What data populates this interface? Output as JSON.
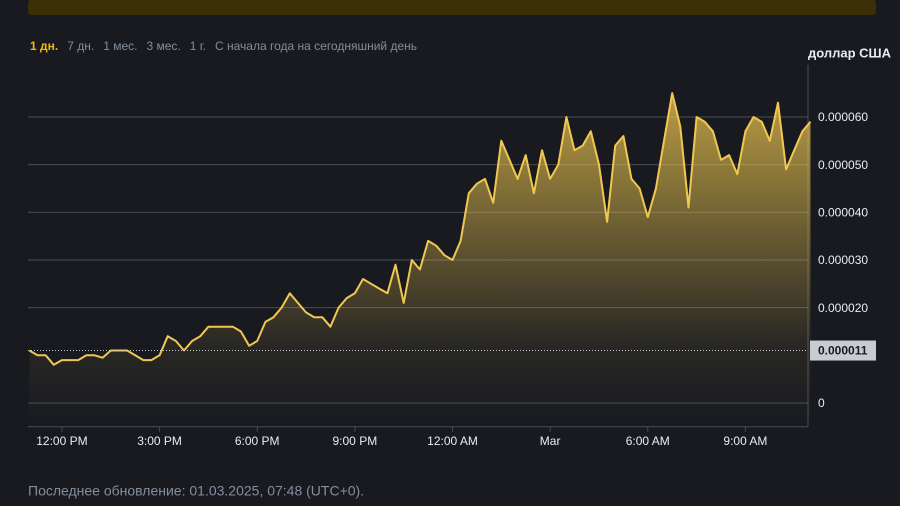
{
  "tabs": [
    "1 дн.",
    "7 дн.",
    "1 мес.",
    "3 мес.",
    "1 г.",
    "С начала года на сегодняшний день"
  ],
  "chart_data": {
    "type": "area",
    "y_axis_label": "доллар США",
    "series": [
      {
        "color": "#f0c850",
        "values": [
          1.1e-05,
          1e-05,
          1e-05,
          8e-06,
          9e-06,
          9e-06,
          9e-06,
          1e-05,
          1e-05,
          9.5e-06,
          1.1e-05,
          1.1e-05,
          1.1e-05,
          1e-05,
          9e-06,
          9e-06,
          1e-05,
          1.4e-05,
          1.3e-05,
          1.1e-05,
          1.3e-05,
          1.4e-05,
          1.6e-05,
          1.6e-05,
          1.6e-05,
          1.6e-05,
          1.5e-05,
          1.2e-05,
          1.3e-05,
          1.7e-05,
          1.8e-05,
          2e-05,
          2.3e-05,
          2.1e-05,
          1.9e-05,
          1.8e-05,
          1.8e-05,
          1.6e-05,
          2e-05,
          2.2e-05,
          2.3e-05,
          2.6e-05,
          2.5e-05,
          2.4e-05,
          2.3e-05,
          2.9e-05,
          2.1e-05,
          3e-05,
          2.8e-05,
          3.4e-05,
          3.3e-05,
          3.1e-05,
          3e-05,
          3.4e-05,
          4.4e-05,
          4.6e-05,
          4.7e-05,
          4.2e-05,
          5.5e-05,
          5.1e-05,
          4.7e-05,
          5.2e-05,
          4.4e-05,
          5.3e-05,
          4.7e-05,
          5e-05,
          6e-05,
          5.3e-05,
          5.4e-05,
          5.7e-05,
          5e-05,
          3.8e-05,
          5.4e-05,
          5.6e-05,
          4.7e-05,
          4.5e-05,
          3.9e-05,
          4.5e-05,
          5.5e-05,
          6.5e-05,
          5.8e-05,
          4.1e-05,
          6e-05,
          5.9e-05,
          5.7e-05,
          5.1e-05,
          5.2e-05,
          4.8e-05,
          5.7e-05,
          6e-05,
          5.9e-05,
          5.5e-05,
          6.3e-05,
          4.9e-05,
          5.3e-05,
          5.7e-05,
          5.9e-05
        ]
      }
    ],
    "xlim": [
      0,
      96
    ],
    "xticks": [
      {
        "value": 4,
        "label": "12:00 PM"
      },
      {
        "value": 16,
        "label": "3:00 PM"
      },
      {
        "value": 28,
        "label": "6:00 PM"
      },
      {
        "value": 40,
        "label": "9:00 PM"
      },
      {
        "value": 52,
        "label": "12:00 AM"
      },
      {
        "value": 64,
        "label": "Mar"
      },
      {
        "value": 76,
        "label": "6:00 AM"
      },
      {
        "value": 88,
        "label": "9:00 AM"
      }
    ],
    "ylim": [
      -5e-06,
      7e-05
    ],
    "yticks": [
      0,
      {
        "value": 2e-05,
        "label": "0.000020"
      },
      {
        "value": 3e-05,
        "label": "0.000030"
      },
      {
        "value": 4e-05,
        "label": "0.000040"
      },
      {
        "value": 5e-05,
        "label": "0.000050"
      },
      {
        "value": 6e-05,
        "label": "0.000060"
      }
    ],
    "grid": true,
    "last_price": 1.1e-05
  },
  "footer": "Последнее обновление: 01.03.2025, 07:48 (UTC+0)."
}
